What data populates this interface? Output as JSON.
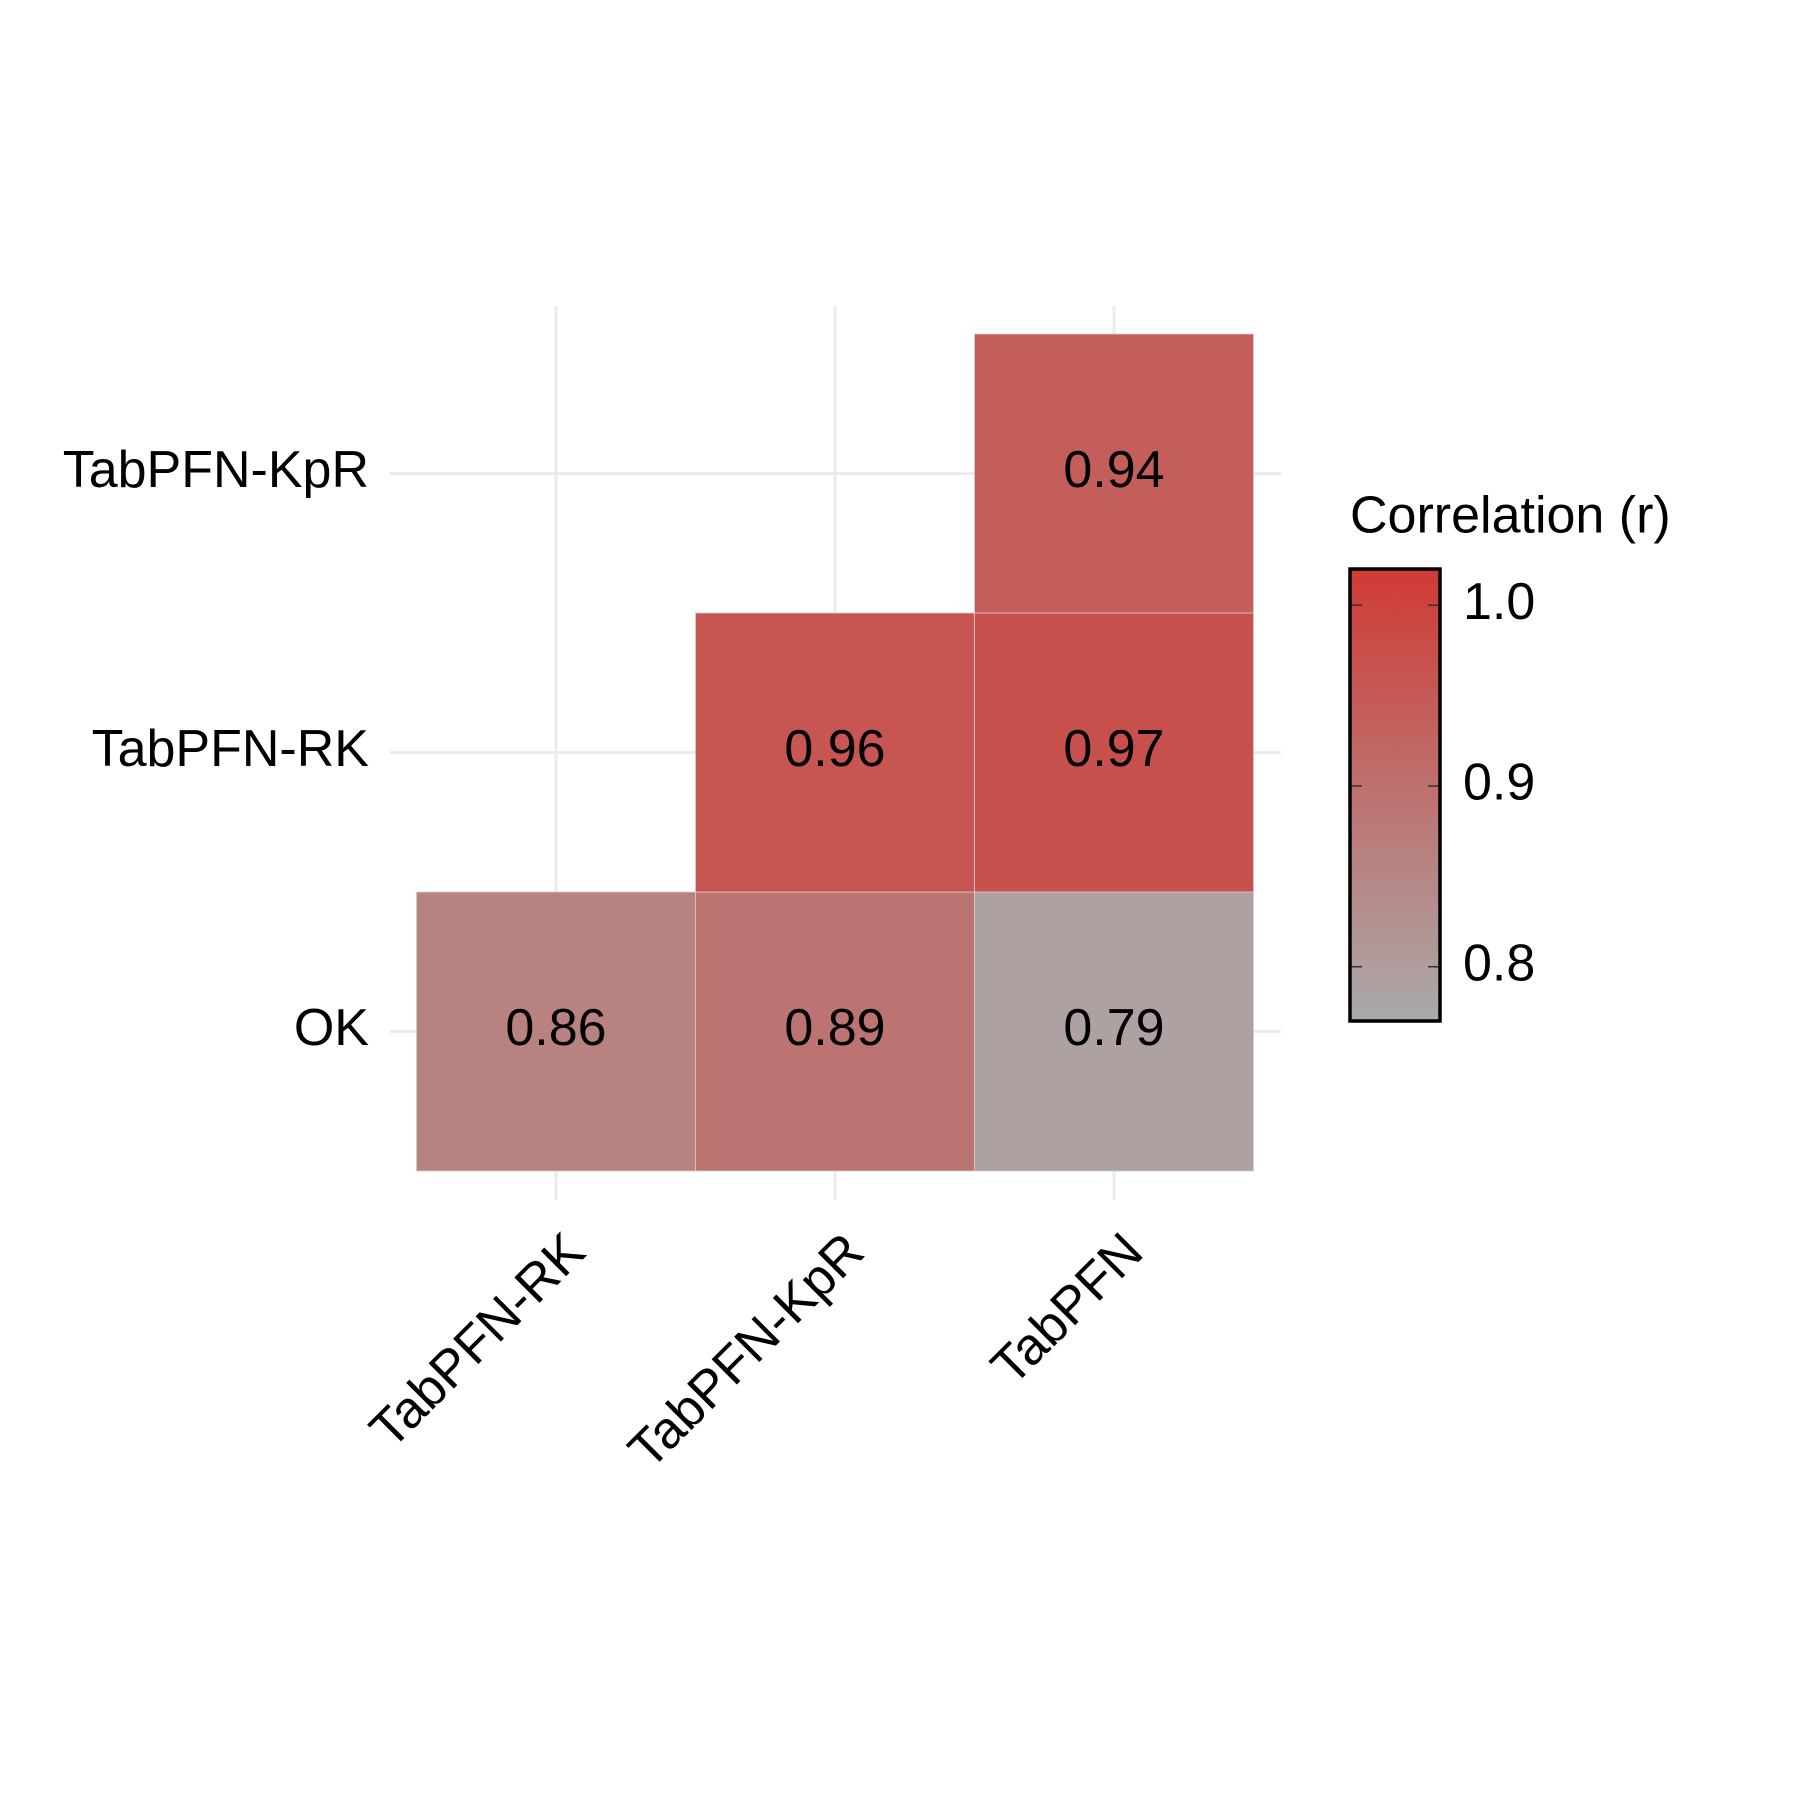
{
  "chart_data": {
    "type": "heatmap",
    "x": [
      "TabPFN-RK",
      "TabPFN-KpR",
      "TabPFN"
    ],
    "y": [
      "OK",
      "TabPFN-RK",
      "TabPFN-KpR"
    ],
    "values": [
      [
        0.86,
        0.89,
        0.79
      ],
      [
        null,
        0.96,
        0.97
      ],
      [
        null,
        null,
        0.94
      ]
    ],
    "legend_title": "Correlation (r)",
    "colorbar_lim": [
      0.77,
      1.02
    ],
    "colorbar_ticks": [
      0.8,
      0.9,
      {
        "value": 1,
        "label": "1.0"
      }
    ],
    "color_low": "#aaaaaa",
    "color_high": "#d03a35",
    "grid": true,
    "legend_position": "right"
  }
}
